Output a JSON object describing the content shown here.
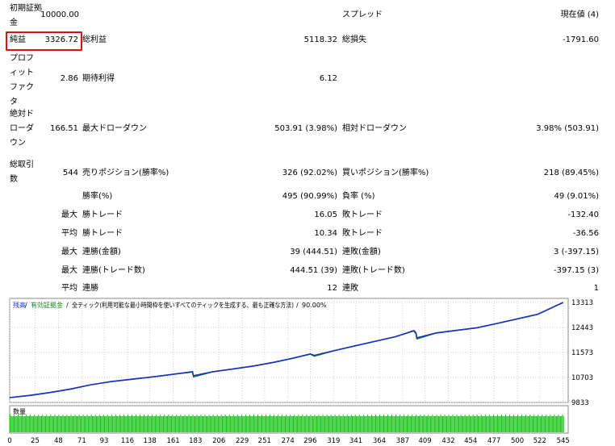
{
  "report": {
    "initial_deposit": {
      "label": "初期証拠金",
      "value": "10000.00"
    },
    "spread": {
      "label": "スプレッド",
      "value": "現在値 (4)"
    },
    "net_profit": {
      "label": "純益",
      "value": "3326.72"
    },
    "gross_profit": {
      "label": "総利益",
      "value": "5118.32"
    },
    "gross_loss": {
      "label": "総損失",
      "value": "-1791.60"
    },
    "profit_factor": {
      "label": "プロフィットファクタ",
      "value": "2.86"
    },
    "expected_payoff": {
      "label": "期待利得",
      "value": "6.12"
    },
    "absolute_drawdown": {
      "label": "絶対ドローダウン",
      "value": "166.51"
    },
    "maximal_drawdown": {
      "label": "最大ドローダウン",
      "value": "503.91 (3.98%)"
    },
    "relative_drawdown": {
      "label": "相対ドローダウン",
      "value": "3.98% (503.91)"
    },
    "total_trades": {
      "label": "総取引数",
      "value": "544"
    },
    "short_positions": {
      "label": "売りポジション(勝率%)",
      "value": "326 (92.02%)"
    },
    "long_positions": {
      "label": "買いポジション(勝率%)",
      "value": "218 (89.45%)"
    },
    "profit_trades": {
      "label": "勝率(%)",
      "value": "495 (90.99%)"
    },
    "loss_trades": {
      "label": "負率 (%)",
      "value": "49 (9.01%)"
    },
    "largest": {
      "label": "最大",
      "profit_label": "勝トレード",
      "profit_value": "16.05",
      "loss_label": "敗トレード",
      "loss_value": "-132.40"
    },
    "average": {
      "label": "平均",
      "profit_label": "勝トレード",
      "profit_value": "10.34",
      "loss_label": "敗トレード",
      "loss_value": "-36.56"
    },
    "max_consecutive_count": {
      "label": "最大",
      "win_label": "連勝(金額)",
      "win_value": "39 (444.51)",
      "loss_label": "連敗(金額)",
      "loss_value": "3 (-397.15)"
    },
    "max_consecutive_amount": {
      "label": "最大",
      "win_label": "連勝(トレード数)",
      "win_value": "444.51 (39)",
      "loss_label": "連敗(トレード数)",
      "loss_value": "-397.15 (3)"
    },
    "avg_consecutive": {
      "label": "平均",
      "win_label": "連勝",
      "win_value": "12",
      "loss_label": "連敗",
      "loss_value": "1"
    }
  },
  "chart_data": {
    "type": "line",
    "legend": {
      "balance": "残高",
      "equity": "有効証拠金",
      "modelling": "全ティック(利用可能な最小時間枠を使いすべてのティックを生成する、最も正確な方法)",
      "quality": "90.00%",
      "sep1": "/",
      "sep2": "/",
      "sep3": "/"
    },
    "volume_label": "数量",
    "yticks": [
      9833,
      10703,
      11573,
      12443,
      13313
    ],
    "ylim": [
      9833,
      13450
    ],
    "xticks": [
      0,
      25,
      48,
      71,
      93,
      116,
      138,
      161,
      183,
      206,
      229,
      251,
      274,
      296,
      319,
      341,
      364,
      387,
      409,
      432,
      454,
      477,
      500,
      522,
      545
    ],
    "xlim": [
      0,
      550
    ],
    "series": [
      {
        "name": "残高",
        "color": "#1a2fc4",
        "x": [
          0,
          20,
          40,
          60,
          80,
          100,
          120,
          140,
          160,
          180,
          181,
          200,
          220,
          240,
          260,
          280,
          296,
          300,
          320,
          340,
          360,
          380,
          398,
          400,
          401,
          420,
          440,
          460,
          480,
          500,
          520,
          545
        ],
        "y": [
          10000,
          10080,
          10180,
          10300,
          10450,
          10560,
          10640,
          10720,
          10810,
          10900,
          10760,
          10900,
          11000,
          11100,
          11230,
          11380,
          11520,
          11470,
          11640,
          11800,
          11960,
          12120,
          12330,
          12260,
          12080,
          12250,
          12340,
          12430,
          12580,
          12740,
          12900,
          13310
        ]
      },
      {
        "name": "有効証拠金",
        "color": "#1a8a1a",
        "x": [
          0,
          20,
          40,
          60,
          80,
          100,
          120,
          140,
          160,
          180,
          181,
          200,
          220,
          240,
          260,
          280,
          296,
          300,
          320,
          340,
          360,
          380,
          398,
          400,
          401,
          420,
          440,
          460,
          480,
          500,
          520,
          545
        ],
        "y": [
          10000,
          10075,
          10175,
          10295,
          10445,
          10555,
          10635,
          10715,
          10805,
          10890,
          10720,
          10895,
          10995,
          11095,
          11225,
          11375,
          11510,
          11440,
          11635,
          11795,
          11955,
          12115,
          12320,
          12220,
          12040,
          12245,
          12335,
          12425,
          12575,
          12735,
          12895,
          13305
        ]
      }
    ]
  }
}
